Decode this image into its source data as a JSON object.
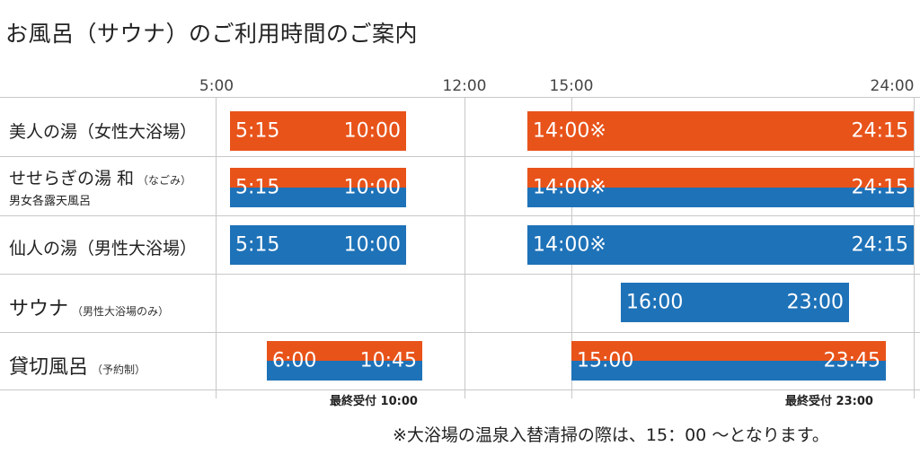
{
  "title": "お風呂（サウナ）のご利用時間のご案内",
  "hours": [
    "5:00",
    "12:00",
    "15:00",
    "24:00"
  ],
  "rows": [
    {
      "label": "美人の湯（女性大浴場）",
      "bars": [
        {
          "start": "5:15",
          "end": "10:00",
          "color": "orange"
        },
        {
          "start": "14:00※",
          "end": "24:15",
          "color": "orange"
        }
      ]
    },
    {
      "label": "せせらぎの湯 和",
      "label_small": "（なごみ）",
      "label_sub": "男女各露天風呂",
      "bars": [
        {
          "start": "5:15",
          "end": "10:00",
          "color": "orange/blue"
        },
        {
          "start": "14:00※",
          "end": "24:15",
          "color": "orange/blue"
        }
      ]
    },
    {
      "label": "仙人の湯（男性大浴場）",
      "bars": [
        {
          "start": "5:15",
          "end": "10:00",
          "color": "blue"
        },
        {
          "start": "14:00※",
          "end": "24:15",
          "color": "blue"
        }
      ]
    },
    {
      "label": "サウナ",
      "label_small": "（男性大浴場のみ）",
      "bars": [
        {
          "start": "16:00",
          "end": "23:00",
          "color": "blue"
        }
      ]
    },
    {
      "label": "貸切風呂",
      "label_small": "（予約制）",
      "bars": [
        {
          "start": "6:00",
          "end": "10:45",
          "color": "orange/blue"
        },
        {
          "start": "15:00",
          "end": "23:45",
          "color": "orange/blue"
        }
      ]
    }
  ],
  "last_reception": [
    "最終受付 10:00",
    "最終受付 23:00"
  ],
  "note": "※大浴場の温泉入替清掃の際は、15：00 〜となります。",
  "colors": {
    "orange": "#e8531a",
    "blue": "#1e72b8",
    "grid": "#c8c8c8"
  }
}
